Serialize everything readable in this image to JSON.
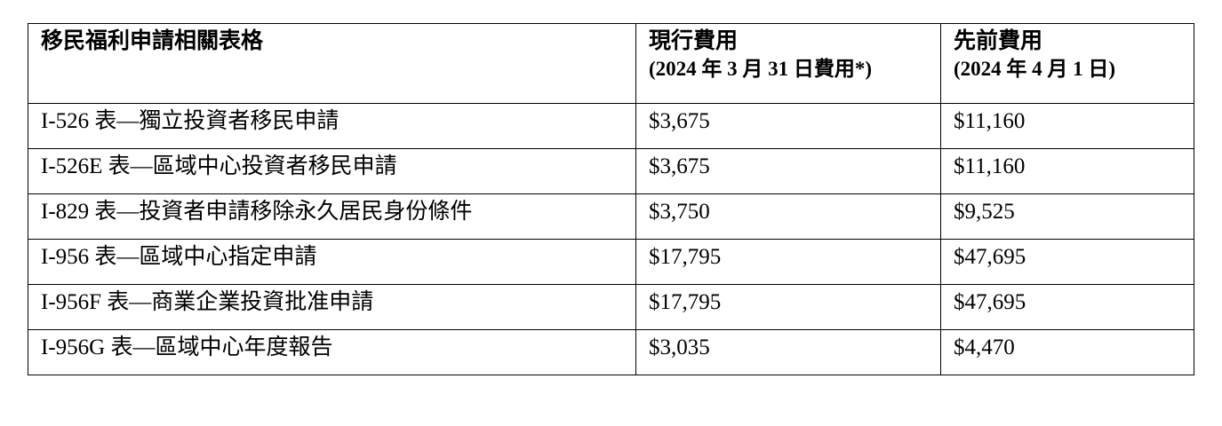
{
  "table": {
    "headers": [
      {
        "title": "移民福利申請相關表格",
        "subtitle": ""
      },
      {
        "title": "現行費用",
        "subtitle": "(2024 年 3 月 31 日費用*)"
      },
      {
        "title": "先前費用",
        "subtitle": "(2024 年 4 月 1 日)"
      }
    ],
    "rows": [
      {
        "form": "I-526 表—獨立投資者移民申請",
        "current": "$3,675",
        "previous": "$11,160"
      },
      {
        "form": "I-526E 表—區域中心投資者移民申請",
        "current": "$3,675",
        "previous": "$11,160"
      },
      {
        "form": "I-829 表—投資者申請移除永久居民身份條件",
        "current": "$3,750",
        "previous": "$9,525"
      },
      {
        "form": "I-956 表—區域中心指定申請",
        "current": "$17,795",
        "previous": "$47,695"
      },
      {
        "form": "I-956F 表—商業企業投資批准申請",
        "current": "$17,795",
        "previous": "$47,695"
      },
      {
        "form": "I-956G 表—區域中心年度報告",
        "current": "$3,035",
        "previous": "$4,470"
      }
    ]
  }
}
